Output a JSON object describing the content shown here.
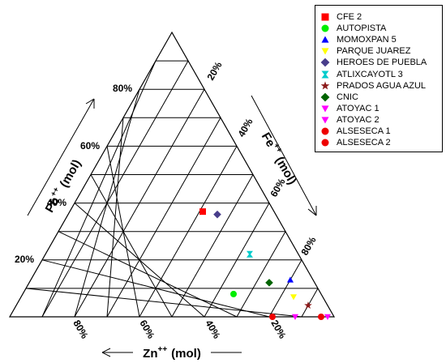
{
  "chart_data": {
    "type": "scatter",
    "subtype": "ternary",
    "axes": {
      "left": {
        "label": "Pb",
        "sup": "++",
        "unit": "(mol)",
        "ticks": [
          "20%",
          "40%",
          "60%",
          "80%"
        ]
      },
      "right": {
        "label": "Fe",
        "sup": "++",
        "unit": "(mol)",
        "ticks": [
          "20%",
          "40%",
          "60%",
          "80%"
        ]
      },
      "bottom": {
        "label": "Zn",
        "sup": "++",
        "unit": "(mol)",
        "ticks": [
          "20%",
          "40%",
          "60%",
          "80%"
        ]
      }
    },
    "grid": true,
    "grid_divisions": 10,
    "legend_position": "top-right",
    "series": [
      {
        "name": "CFE 2",
        "marker": "square",
        "color": "#ff0000",
        "pb": 37,
        "fe": 41,
        "zn": 22
      },
      {
        "name": "AUTOPISTA",
        "marker": "circle",
        "color": "#00ee00",
        "pb": 8,
        "fe": 65,
        "zn": 27
      },
      {
        "name": "MOMOXPAN 5",
        "marker": "triangle-up",
        "color": "#0000ff",
        "pb": 13,
        "fe": 80,
        "zn": 7
      },
      {
        "name": "PARQUE JUAREZ",
        "marker": "triangle-down",
        "color": "#ffff00",
        "pb": 7,
        "fe": 84,
        "zn": 9
      },
      {
        "name": "HEROES DE PUEBLA",
        "marker": "diamond",
        "color": "#483d8b",
        "pb": 36,
        "fe": 46,
        "zn": 18
      },
      {
        "name": "ATLIXCAYOTL 3",
        "marker": "hourglass",
        "color": "#00cccc",
        "pb": 22,
        "fe": 63,
        "zn": 15
      },
      {
        "name": "PRADOS AGUA AZUL",
        "marker": "star",
        "color": "#8b1a1a",
        "pb": 4,
        "fe": 90,
        "zn": 6
      },
      {
        "name": "CNIC",
        "marker": "diamond",
        "color": "#006400",
        "pb": 12,
        "fe": 74,
        "zn": 14
      },
      {
        "name": "ATOYAC 1",
        "marker": "triangle-down",
        "color": "#ff00ff",
        "pb": 0,
        "fe": 88,
        "zn": 12
      },
      {
        "name": "ATOYAC 2",
        "marker": "triangle-down",
        "color": "#ff00ff",
        "pb": 0,
        "fe": 98,
        "zn": 2
      },
      {
        "name": "ALSESECA 1",
        "marker": "circle",
        "color": "#ee0000",
        "pb": 0,
        "fe": 81,
        "zn": 19
      },
      {
        "name": "ALSESECA 2",
        "marker": "circle",
        "color": "#ee0000",
        "pb": 0,
        "fe": 96,
        "zn": 4
      }
    ]
  }
}
